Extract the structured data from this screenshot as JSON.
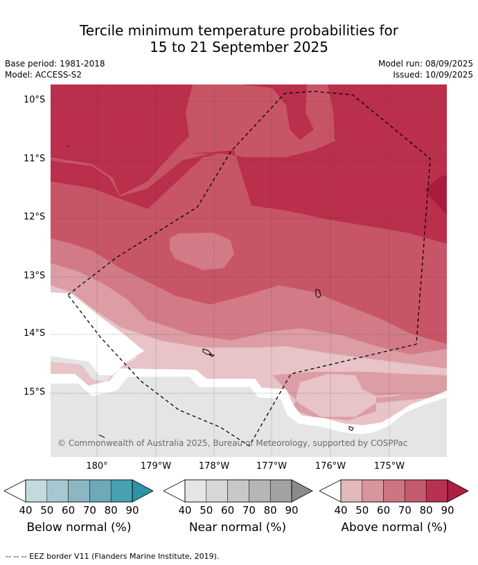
{
  "title": {
    "line1": "Tercile minimum temperature probabilities for",
    "line2": "15 to 21 September 2025"
  },
  "meta": {
    "base_period": "Base period: 1981-2018",
    "model": "Model: ACCESS-S2",
    "model_run": "Model run: 08/09/2025",
    "issued": "Issued: 10/09/2025"
  },
  "map": {
    "lat_labels": [
      "10°S",
      "11°S",
      "12°S",
      "13°S",
      "14°S",
      "15°S"
    ],
    "lon_labels": [
      "180°",
      "179°W",
      "178°W",
      "177°W",
      "176°W",
      "175°W"
    ],
    "copyright": "© Commonwealth of Australia 2025, Bureau of Meteorology, supported by COSPPac",
    "colors": {
      "above_70_80": "#c75566",
      "above_80_90": "#ba2f4b",
      "above_90": "#a81d3d",
      "above_60_70": "#d27b87",
      "above_50_60": "#dc9da4",
      "above_40_50": "#e8c3c7",
      "near_40_50": "#e5e5e5",
      "white": "#ffffff"
    }
  },
  "legends": [
    {
      "title": "Below normal (%)",
      "ticks": [
        "40",
        "50",
        "60",
        "70",
        "80",
        "90"
      ],
      "colors": [
        "#c3d9e0",
        "#a7c8d1",
        "#8cb7c2",
        "#6da9b7",
        "#48a1b1",
        "#2d93a6"
      ]
    },
    {
      "title": "Near normal (%)",
      "ticks": [
        "40",
        "50",
        "60",
        "70",
        "80",
        "90"
      ],
      "colors": [
        "#e5e5e5",
        "#d7d7d7",
        "#c8c8c8",
        "#b6b6b6",
        "#a2a2a2",
        "#8a8a8a"
      ]
    },
    {
      "title": "Above normal (%)",
      "ticks": [
        "40",
        "50",
        "60",
        "70",
        "80",
        "90"
      ],
      "colors": [
        "#e3b7bb",
        "#d7959c",
        "#cb7580",
        "#c45a6b",
        "#b93150",
        "#ac1f40"
      ]
    }
  ],
  "footnote": "--  --  -- EEZ border V11 (Flanders Marine Institute, 2019)."
}
